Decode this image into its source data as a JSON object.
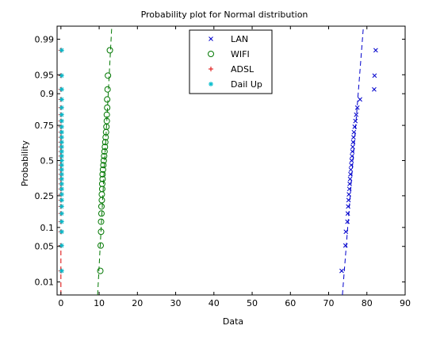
{
  "chart_data": {
    "type": "scatter",
    "title": "Probability plot for Normal distribution",
    "xlabel": "Data",
    "ylabel": "Probability",
    "xlim": [
      -1,
      90
    ],
    "ylim_probability": [
      0.005,
      0.995
    ],
    "x_scale": "linear",
    "y_scale": "normal-probability",
    "grid": false,
    "legend_position": "top-center",
    "x_ticks": [
      0,
      10,
      20,
      30,
      40,
      50,
      60,
      70,
      80,
      90
    ],
    "x_tick_labels": [
      "0",
      "10",
      "20",
      "30",
      "40",
      "50",
      "60",
      "70",
      "80",
      "90"
    ],
    "y_ticks": [
      0.01,
      0.05,
      0.1,
      0.25,
      0.5,
      0.75,
      0.9,
      0.95,
      0.99
    ],
    "y_tick_labels": [
      "0.01",
      "0.05",
      "0.1",
      "0.25",
      "0.5",
      "0.75",
      "0.9",
      "0.95",
      "0.99"
    ],
    "legend": [
      "LAN",
      "WIFI",
      "ADSL",
      "Dail Up"
    ],
    "series": [
      {
        "name": "LAN",
        "color": "#0000cc",
        "marker": "x",
        "values": [
          73.4,
          74.4,
          74.5,
          74.9,
          75.0,
          75.1,
          75.2,
          75.3,
          75.4,
          75.5,
          75.6,
          75.7,
          75.8,
          75.9,
          76.0,
          76.1,
          76.2,
          76.3,
          76.4,
          76.5,
          76.6,
          76.8,
          77.0,
          77.2,
          77.5,
          78.2,
          81.9,
          82.0,
          82.3
        ],
        "fit_line": [
          [
            73.6,
            0.005
          ],
          [
            79.1,
            0.995
          ]
        ]
      },
      {
        "name": "WIFI",
        "color": "#007700",
        "marker": "o",
        "values": [
          10.3,
          10.4,
          10.5,
          10.5,
          10.6,
          10.6,
          10.7,
          10.7,
          10.8,
          10.8,
          10.9,
          10.9,
          11.0,
          11.1,
          11.2,
          11.3,
          11.4,
          11.5,
          11.6,
          11.7,
          11.8,
          11.9,
          12.0,
          12.0,
          12.1,
          12.1,
          12.2,
          12.3,
          12.8
        ],
        "fit_line": [
          [
            9.6,
            0.005
          ],
          [
            13.3,
            0.995
          ]
        ]
      },
      {
        "name": "ADSL",
        "color": "#dd0000",
        "marker": "+",
        "values": [
          0.0,
          0.0,
          0.0,
          0.0,
          0.0,
          0.0,
          0.0,
          0.0,
          0.0,
          0.0,
          0.0,
          0.0,
          0.0,
          0.0,
          0.0,
          0.0,
          0.0,
          0.0,
          0.0,
          0.0,
          0.0,
          0.0,
          0.0,
          0.0,
          0.0,
          0.0,
          0.0,
          0.0,
          0.0
        ],
        "fit_line": [
          [
            0.0,
            0.005
          ],
          [
            0.0,
            0.05
          ]
        ]
      },
      {
        "name": "Dail Up",
        "color": "#00bbcc",
        "marker": "*",
        "values": [
          0.2,
          0.2,
          0.2,
          0.2,
          0.2,
          0.2,
          0.2,
          0.2,
          0.2,
          0.2,
          0.2,
          0.2,
          0.2,
          0.2,
          0.2,
          0.2,
          0.2,
          0.2,
          0.2,
          0.2,
          0.2,
          0.2,
          0.2,
          0.2,
          0.2,
          0.2,
          0.2,
          0.2,
          0.2
        ]
      }
    ]
  }
}
